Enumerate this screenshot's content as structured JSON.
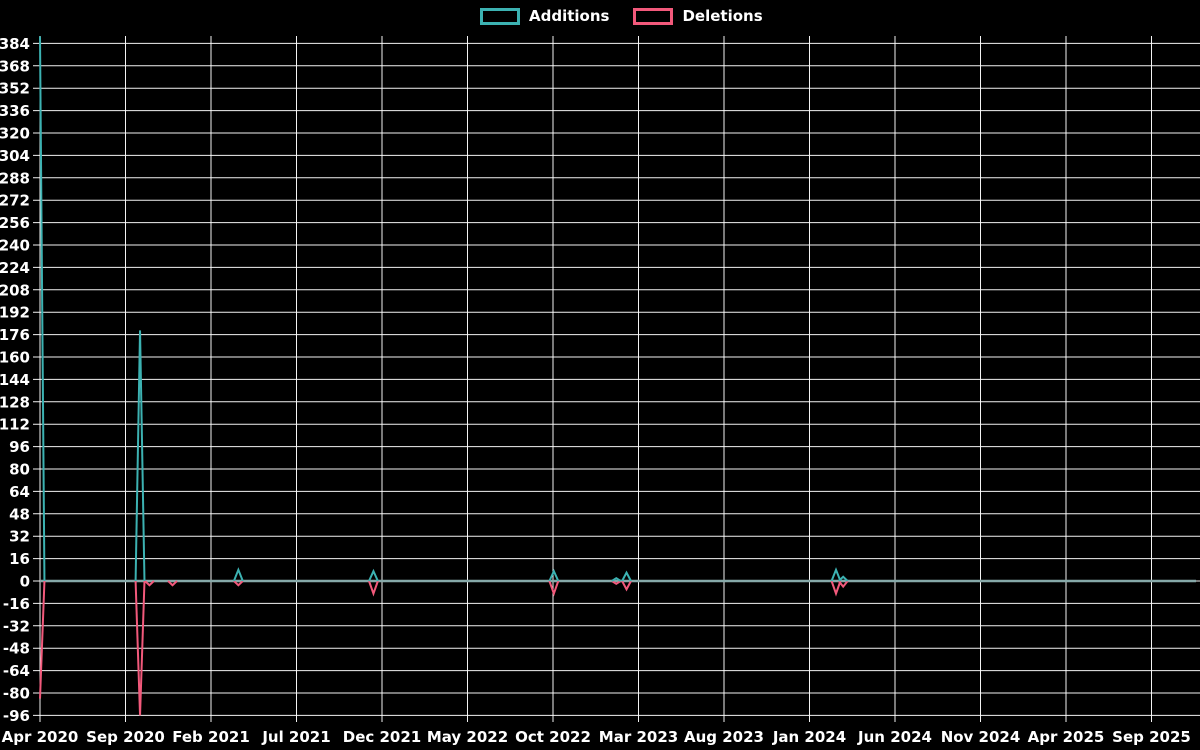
{
  "chart_data": {
    "type": "line",
    "title": "",
    "xlabel": "",
    "ylabel": "",
    "background_color": "#000000",
    "grid": true,
    "grid_color": "#ffffff",
    "text_color": "#ffffff",
    "zero_line_color": "#86a9a9",
    "legend_position": "top-center",
    "x_tick_labels": [
      "Apr 2020",
      "Sep 2020",
      "Feb 2021",
      "Jul 2021",
      "Dec 2021",
      "May 2022",
      "Oct 2022",
      "Mar 2023",
      "Aug 2023",
      "Jan 2024",
      "Jun 2024",
      "Nov 2024",
      "Apr 2025",
      "Sep 2025"
    ],
    "x_tick_interval_months": 5,
    "y_ticks": [
      384,
      368,
      352,
      336,
      320,
      304,
      288,
      272,
      256,
      240,
      224,
      208,
      192,
      176,
      160,
      144,
      128,
      112,
      96,
      80,
      64,
      48,
      32,
      16,
      0,
      -16,
      -32,
      -48,
      -64,
      -80,
      -96
    ],
    "ylim": [
      -96,
      389
    ],
    "baseline_value": 0,
    "series": [
      {
        "name": "Additions",
        "color": "#3cb2b2"
      },
      {
        "name": "Deletions",
        "color": "#f2597b"
      }
    ],
    "events": [
      {
        "date": "Apr 2020",
        "month_offset": 0.0,
        "additions": 389,
        "deletions": -84
      },
      {
        "date": "Late Sep 2020",
        "month_offset": 5.85,
        "additions": 179,
        "deletions": -96
      },
      {
        "date": "Mid Oct 2020",
        "month_offset": 6.4,
        "additions": 0,
        "deletions": -3
      },
      {
        "date": "Nov 2020",
        "month_offset": 7.75,
        "additions": 0,
        "deletions": -3
      },
      {
        "date": "Mar 2021",
        "month_offset": 11.6,
        "additions": 8,
        "deletions": -3
      },
      {
        "date": "Mid Nov 2021",
        "month_offset": 19.5,
        "additions": 7,
        "deletions": -9
      },
      {
        "date": "Early Oct 2022",
        "month_offset": 30.05,
        "additions": 7,
        "deletions": -9
      },
      {
        "date": "Mid Jan 2023",
        "month_offset": 33.7,
        "additions": 2,
        "deletions": -2
      },
      {
        "date": "Mid Feb 2023",
        "month_offset": 34.3,
        "additions": 6,
        "deletions": -6
      },
      {
        "date": "Mid Feb 2024",
        "month_offset": 46.55,
        "additions": 8,
        "deletions": -9
      },
      {
        "date": "Late Feb 2024",
        "month_offset": 46.97,
        "additions": 3,
        "deletions": -4
      }
    ]
  }
}
